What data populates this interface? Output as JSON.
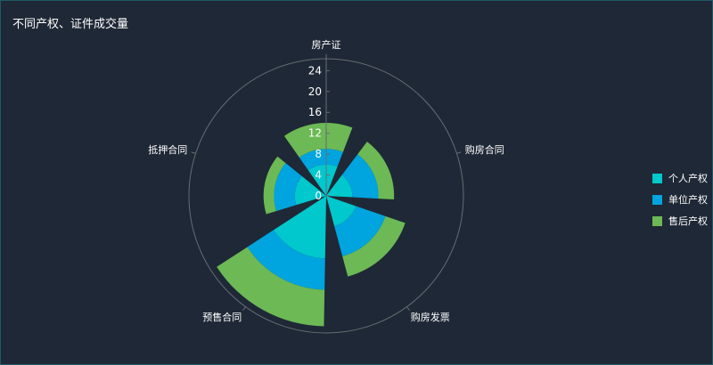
{
  "chart_data": {
    "type": "bar",
    "subtype": "polar-stacked",
    "title": "不同产权、证件成交量",
    "categories": [
      "房产证",
      "购房合同",
      "购房发票",
      "预售合同",
      "抵押合同"
    ],
    "series": [
      {
        "name": "个人产权",
        "color": "#00c8cc",
        "values": [
          6,
          5,
          6,
          12,
          6
        ]
      },
      {
        "name": "单位产权",
        "color": "#00a4de",
        "values": [
          3,
          5,
          6,
          6,
          4
        ]
      },
      {
        "name": "售后产权",
        "color": "#6cb955",
        "values": [
          5,
          3,
          4,
          7,
          2
        ]
      }
    ],
    "radius_ticks": [
      "0",
      "4",
      "8",
      "12",
      "16",
      "20",
      "24"
    ],
    "legend_position": "right",
    "grid": false
  }
}
